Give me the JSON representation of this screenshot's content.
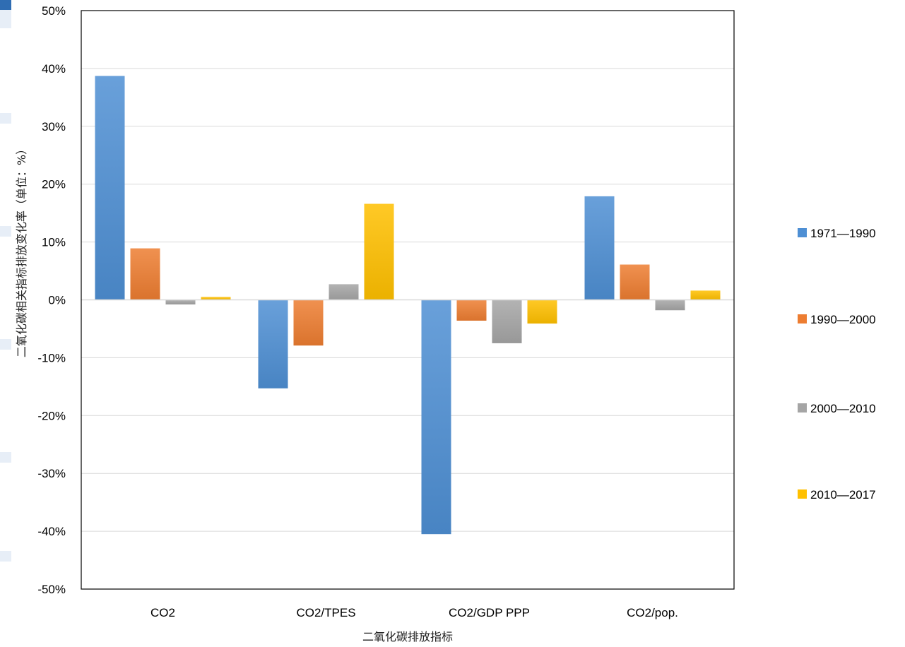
{
  "chart_data": {
    "type": "bar",
    "title": "",
    "xlabel": "二氧化碳排放指标",
    "ylabel": "二氧化碳相关指标排放变化率（单位：%）",
    "categories": [
      "CO2",
      "CO2/TPES",
      "CO2/GDP PPP",
      "CO2/pop."
    ],
    "ylim": [
      -50,
      50
    ],
    "yticks": [
      "50%",
      "40%",
      "30%",
      "20%",
      "10%",
      "0%",
      "-10%",
      "-20%",
      "-30%",
      "-40%",
      "-50%"
    ],
    "grid": true,
    "legend": "right",
    "series": [
      {
        "name": "1971—1990",
        "color": "#4e8fd4",
        "values": [
          38.7,
          -15.3,
          -40.5,
          17.9
        ]
      },
      {
        "name": "1990—2000",
        "color": "#ed7d31",
        "values": [
          8.9,
          -7.9,
          -3.6,
          6.1
        ]
      },
      {
        "name": "2000—2010",
        "color": "#a5a5a5",
        "values": [
          -0.8,
          2.7,
          -7.5,
          -1.8
        ]
      },
      {
        "name": "2010—2017",
        "color": "#ffc000",
        "values": [
          0.5,
          16.6,
          -4.1,
          1.6
        ]
      }
    ]
  }
}
